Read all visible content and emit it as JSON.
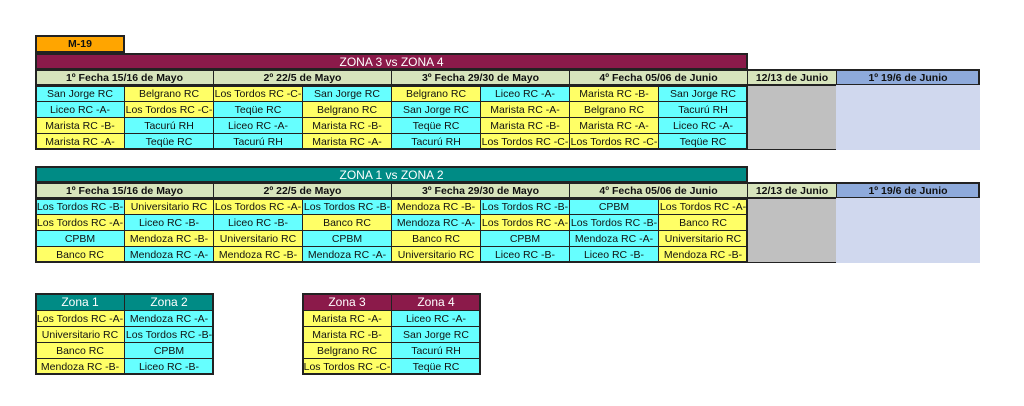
{
  "category": "M-19",
  "colors": {
    "category": "#FFA500",
    "zona34": "#8B1A4A",
    "zona12": "#008B85",
    "header": "#D7E4BC",
    "zoneA": "#FFFF66",
    "zoneB": "#66FFFF",
    "gray": "#C0C0C0",
    "blueHeader": "#8EAADB",
    "blueBody": "#D0D8EE"
  },
  "headers": [
    "1º Fecha 15/16 de Mayo",
    "2º 22/5 de Mayo",
    "3º Fecha 29/30 de Mayo",
    "4º Fecha 05/06 de Junio",
    "12/13 de Junio",
    "1º 19/6 de Junio"
  ],
  "zones": {
    "zona1": {
      "label": "Zona 1",
      "teams": [
        "Los Tordos RC -A-",
        "Universitario RC",
        "Banco RC",
        "Mendoza RC -B-"
      ]
    },
    "zona2": {
      "label": "Zona 2",
      "teams": [
        "Mendoza RC -A-",
        "Los Tordos RC -B-",
        "CPBM",
        "Liceo RC -B-"
      ]
    },
    "zona3": {
      "label": "Zona 3",
      "teams": [
        "Marista RC -A-",
        "Marista RC -B-",
        "Belgrano RC",
        "Los Tordos RC -C-"
      ]
    },
    "zona4": {
      "label": "Zona 4",
      "teams": [
        "Liceo RC -A-",
        "San Jorge RC",
        "Tacurú RH",
        "Teqüe RC"
      ]
    }
  },
  "fixtures": [
    {
      "title": "ZONA 3 vs ZONA 4",
      "rows": [
        [
          "San Jorge RC",
          "Belgrano RC",
          "Los Tordos RC -C-",
          "San Jorge RC",
          "Belgrano RC",
          "Liceo RC -A-",
          "Marista RC -B-",
          "San Jorge RC"
        ],
        [
          "Liceo RC -A-",
          "Los Tordos RC -C-",
          "Teqüe RC",
          "Belgrano RC",
          "San Jorge RC",
          "Marista RC -A-",
          "Belgrano RC",
          "Tacurú RH"
        ],
        [
          "Marista RC -B-",
          "Tacurú RH",
          "Liceo RC -A-",
          "Marista RC -B-",
          "Teqüe RC",
          "Marista RC -B-",
          "Marista RC -A-",
          "Liceo RC -A-"
        ],
        [
          "Marista RC -A-",
          "Teqüe RC",
          "Tacurú RH",
          "Marista RC -A-",
          "Tacurú RH",
          "Los Tordos RC -C-",
          "Los Tordos RC -C-",
          "Teqüe RC"
        ]
      ]
    },
    {
      "title": "ZONA 1 vs ZONA 2",
      "rows": [
        [
          "Los Tordos RC -B-",
          "Universitario RC",
          "Los Tordos RC -A-",
          "Los Tordos RC -B-",
          "Mendoza RC -B-",
          "Los Tordos RC -B-",
          "CPBM",
          "Los Tordos RC -A-"
        ],
        [
          "Los Tordos RC -A-",
          "Liceo RC -B-",
          "Liceo RC -B-",
          "Banco RC",
          "Mendoza RC -A-",
          "Los Tordos RC -A-",
          "Los Tordos RC -B-",
          "Banco RC"
        ],
        [
          "CPBM",
          "Mendoza RC -B-",
          "Universitario RC",
          "CPBM",
          "Banco RC",
          "CPBM",
          "Mendoza RC -A-",
          "Universitario RC"
        ],
        [
          "Banco RC",
          "Mendoza RC -A-",
          "Mendoza RC -B-",
          "Mendoza RC -A-",
          "Universitario RC",
          "Liceo RC -B-",
          "Liceo RC -B-",
          "Mendoza RC -B-"
        ]
      ]
    }
  ]
}
